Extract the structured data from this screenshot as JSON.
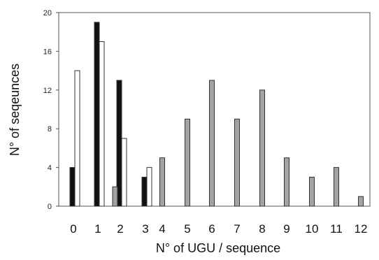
{
  "chart_data": {
    "type": "bar",
    "title": "",
    "xlabel": "N° of UGU / sequence",
    "ylabel": "N° of seqeunces",
    "ylim": [
      0,
      20
    ],
    "yticks": [
      0,
      4,
      8,
      12,
      16,
      20
    ],
    "grid": false,
    "legend": "none",
    "categories": [
      "0",
      "1",
      "2",
      "3",
      "4",
      "5",
      "6",
      "7",
      "8",
      "9",
      "10",
      "11",
      "12"
    ],
    "series": [
      {
        "color": "#111111",
        "values": [
          4,
          19,
          13,
          3,
          null,
          null,
          null,
          null,
          null,
          null,
          null,
          null,
          null
        ]
      },
      {
        "color": "#ffffff",
        "values": [
          14,
          17,
          7,
          4,
          null,
          null,
          null,
          null,
          null,
          null,
          null,
          null,
          null
        ]
      },
      {
        "color": "#a3a3a3",
        "values": [
          null,
          null,
          2,
          null,
          5,
          9,
          13,
          9,
          12,
          5,
          3,
          4,
          1
        ]
      }
    ]
  }
}
